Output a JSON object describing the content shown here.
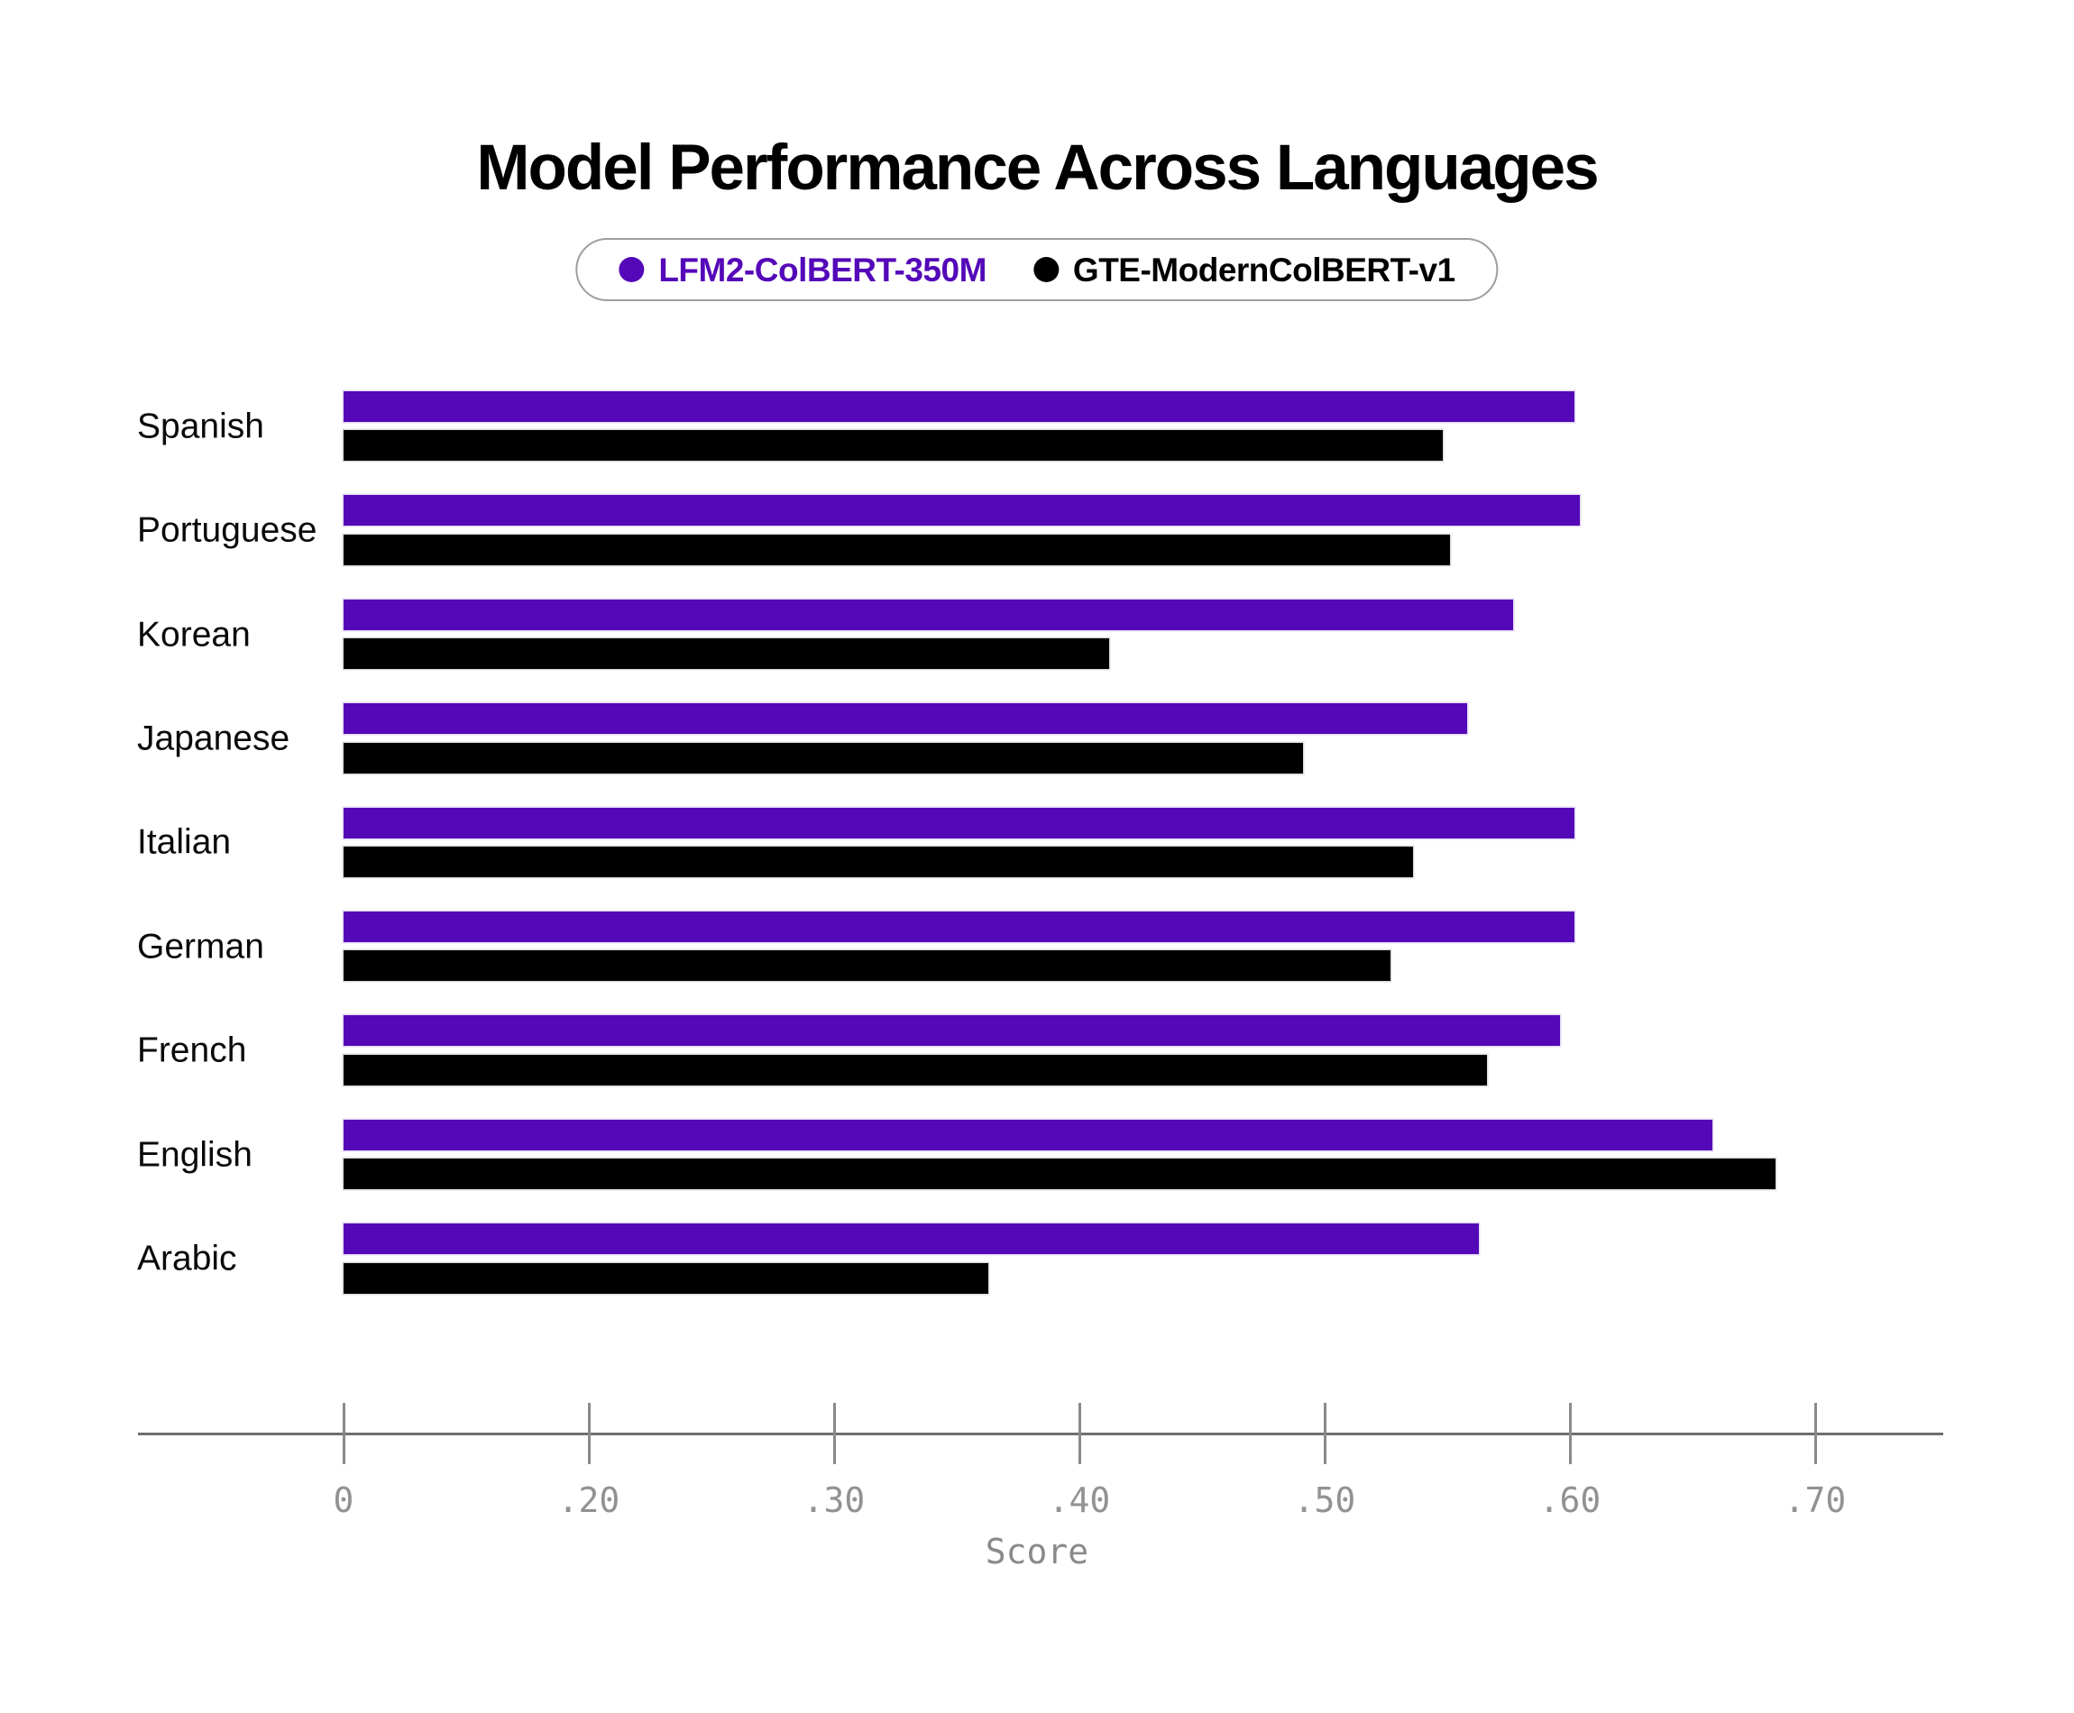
{
  "title": "Model Performance Across Languages",
  "colors": {
    "series_purple": "#5408b8",
    "series_black": "#000000",
    "axis_line": "#6e6e6e",
    "tick_mark": "#8a8a8a",
    "tick_label": "#929292",
    "score_label": "#8a8a8a",
    "legend_border": "#9e9e9e",
    "category_label": "#0a0a0a",
    "background": "#ffffff"
  },
  "chart_data": {
    "type": "bar",
    "orientation": "horizontal",
    "title": "Model Performance Across Languages",
    "xlabel": "Score",
    "legend_position": "top",
    "grid": false,
    "categories": [
      "Spanish",
      "Portuguese",
      "Korean",
      "Japanese",
      "Italian",
      "German",
      "French",
      "English",
      "Arabic"
    ],
    "series": [
      {
        "name": "LFM2-ColBERT-350M",
        "color": "#5408b8",
        "ring": "rgba(206,188,240,0.55)",
        "values": [
          0.602,
          0.604,
          0.577,
          0.558,
          0.602,
          0.602,
          0.596,
          0.658,
          0.563
        ]
      },
      {
        "name": "GTE-ModernColBERT-v1",
        "color": "#000000",
        "ring": "rgba(185,185,185,0.5)",
        "values": [
          0.548,
          0.551,
          0.412,
          0.491,
          0.536,
          0.527,
          0.566,
          0.684,
          0.363
        ]
      }
    ],
    "x_ticks": [
      {
        "label": "0",
        "value": 0.0
      },
      {
        "label": ".20",
        "value": 0.2
      },
      {
        "label": ".30",
        "value": 0.3
      },
      {
        "label": ".40",
        "value": 0.4
      },
      {
        "label": ".50",
        "value": 0.5
      },
      {
        "label": ".60",
        "value": 0.6
      },
      {
        "label": ".70",
        "value": 0.7
      }
    ],
    "xlim": [
      0,
      0.75
    ],
    "axis_note": "ticks equally spaced; 0 to .20 segment compressed to one tick gap"
  }
}
